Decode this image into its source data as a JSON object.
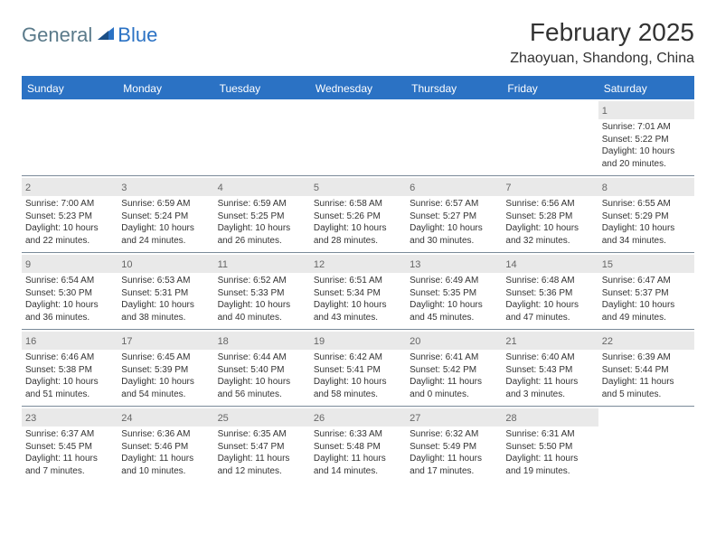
{
  "brand": {
    "word1": "General",
    "word2": "Blue"
  },
  "title": "February 2025",
  "location": "Zhaoyuan, Shandong, China",
  "colors": {
    "header_bg": "#2b72c4",
    "header_text": "#ffffff",
    "daynum_bg": "#e9e9e9",
    "daynum_text": "#666666",
    "body_text": "#333333",
    "rule": "#7a8a99",
    "logo_general": "#5a7a8a",
    "logo_blue": "#2b72c4",
    "page_bg": "#ffffff"
  },
  "typography": {
    "title_fontsize_pt": 21,
    "location_fontsize_pt": 12,
    "dow_fontsize_pt": 9,
    "daynum_fontsize_pt": 8,
    "info_fontsize_pt": 7.5
  },
  "dow": [
    "Sunday",
    "Monday",
    "Tuesday",
    "Wednesday",
    "Thursday",
    "Friday",
    "Saturday"
  ],
  "weeks": [
    [
      null,
      null,
      null,
      null,
      null,
      null,
      {
        "n": "1",
        "sr": "Sunrise: 7:01 AM",
        "ss": "Sunset: 5:22 PM",
        "d1": "Daylight: 10 hours",
        "d2": "and 20 minutes."
      }
    ],
    [
      {
        "n": "2",
        "sr": "Sunrise: 7:00 AM",
        "ss": "Sunset: 5:23 PM",
        "d1": "Daylight: 10 hours",
        "d2": "and 22 minutes."
      },
      {
        "n": "3",
        "sr": "Sunrise: 6:59 AM",
        "ss": "Sunset: 5:24 PM",
        "d1": "Daylight: 10 hours",
        "d2": "and 24 minutes."
      },
      {
        "n": "4",
        "sr": "Sunrise: 6:59 AM",
        "ss": "Sunset: 5:25 PM",
        "d1": "Daylight: 10 hours",
        "d2": "and 26 minutes."
      },
      {
        "n": "5",
        "sr": "Sunrise: 6:58 AM",
        "ss": "Sunset: 5:26 PM",
        "d1": "Daylight: 10 hours",
        "d2": "and 28 minutes."
      },
      {
        "n": "6",
        "sr": "Sunrise: 6:57 AM",
        "ss": "Sunset: 5:27 PM",
        "d1": "Daylight: 10 hours",
        "d2": "and 30 minutes."
      },
      {
        "n": "7",
        "sr": "Sunrise: 6:56 AM",
        "ss": "Sunset: 5:28 PM",
        "d1": "Daylight: 10 hours",
        "d2": "and 32 minutes."
      },
      {
        "n": "8",
        "sr": "Sunrise: 6:55 AM",
        "ss": "Sunset: 5:29 PM",
        "d1": "Daylight: 10 hours",
        "d2": "and 34 minutes."
      }
    ],
    [
      {
        "n": "9",
        "sr": "Sunrise: 6:54 AM",
        "ss": "Sunset: 5:30 PM",
        "d1": "Daylight: 10 hours",
        "d2": "and 36 minutes."
      },
      {
        "n": "10",
        "sr": "Sunrise: 6:53 AM",
        "ss": "Sunset: 5:31 PM",
        "d1": "Daylight: 10 hours",
        "d2": "and 38 minutes."
      },
      {
        "n": "11",
        "sr": "Sunrise: 6:52 AM",
        "ss": "Sunset: 5:33 PM",
        "d1": "Daylight: 10 hours",
        "d2": "and 40 minutes."
      },
      {
        "n": "12",
        "sr": "Sunrise: 6:51 AM",
        "ss": "Sunset: 5:34 PM",
        "d1": "Daylight: 10 hours",
        "d2": "and 43 minutes."
      },
      {
        "n": "13",
        "sr": "Sunrise: 6:49 AM",
        "ss": "Sunset: 5:35 PM",
        "d1": "Daylight: 10 hours",
        "d2": "and 45 minutes."
      },
      {
        "n": "14",
        "sr": "Sunrise: 6:48 AM",
        "ss": "Sunset: 5:36 PM",
        "d1": "Daylight: 10 hours",
        "d2": "and 47 minutes."
      },
      {
        "n": "15",
        "sr": "Sunrise: 6:47 AM",
        "ss": "Sunset: 5:37 PM",
        "d1": "Daylight: 10 hours",
        "d2": "and 49 minutes."
      }
    ],
    [
      {
        "n": "16",
        "sr": "Sunrise: 6:46 AM",
        "ss": "Sunset: 5:38 PM",
        "d1": "Daylight: 10 hours",
        "d2": "and 51 minutes."
      },
      {
        "n": "17",
        "sr": "Sunrise: 6:45 AM",
        "ss": "Sunset: 5:39 PM",
        "d1": "Daylight: 10 hours",
        "d2": "and 54 minutes."
      },
      {
        "n": "18",
        "sr": "Sunrise: 6:44 AM",
        "ss": "Sunset: 5:40 PM",
        "d1": "Daylight: 10 hours",
        "d2": "and 56 minutes."
      },
      {
        "n": "19",
        "sr": "Sunrise: 6:42 AM",
        "ss": "Sunset: 5:41 PM",
        "d1": "Daylight: 10 hours",
        "d2": "and 58 minutes."
      },
      {
        "n": "20",
        "sr": "Sunrise: 6:41 AM",
        "ss": "Sunset: 5:42 PM",
        "d1": "Daylight: 11 hours",
        "d2": "and 0 minutes."
      },
      {
        "n": "21",
        "sr": "Sunrise: 6:40 AM",
        "ss": "Sunset: 5:43 PM",
        "d1": "Daylight: 11 hours",
        "d2": "and 3 minutes."
      },
      {
        "n": "22",
        "sr": "Sunrise: 6:39 AM",
        "ss": "Sunset: 5:44 PM",
        "d1": "Daylight: 11 hours",
        "d2": "and 5 minutes."
      }
    ],
    [
      {
        "n": "23",
        "sr": "Sunrise: 6:37 AM",
        "ss": "Sunset: 5:45 PM",
        "d1": "Daylight: 11 hours",
        "d2": "and 7 minutes."
      },
      {
        "n": "24",
        "sr": "Sunrise: 6:36 AM",
        "ss": "Sunset: 5:46 PM",
        "d1": "Daylight: 11 hours",
        "d2": "and 10 minutes."
      },
      {
        "n": "25",
        "sr": "Sunrise: 6:35 AM",
        "ss": "Sunset: 5:47 PM",
        "d1": "Daylight: 11 hours",
        "d2": "and 12 minutes."
      },
      {
        "n": "26",
        "sr": "Sunrise: 6:33 AM",
        "ss": "Sunset: 5:48 PM",
        "d1": "Daylight: 11 hours",
        "d2": "and 14 minutes."
      },
      {
        "n": "27",
        "sr": "Sunrise: 6:32 AM",
        "ss": "Sunset: 5:49 PM",
        "d1": "Daylight: 11 hours",
        "d2": "and 17 minutes."
      },
      {
        "n": "28",
        "sr": "Sunrise: 6:31 AM",
        "ss": "Sunset: 5:50 PM",
        "d1": "Daylight: 11 hours",
        "d2": "and 19 minutes."
      },
      null
    ]
  ]
}
